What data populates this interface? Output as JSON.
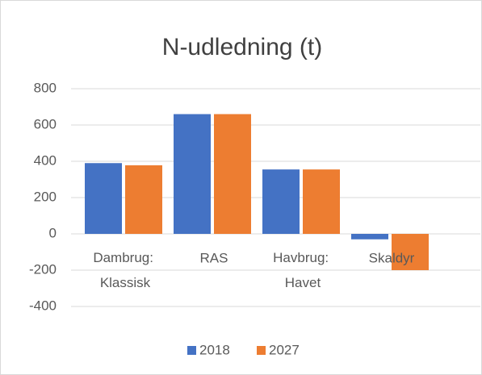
{
  "chart_data": {
    "type": "bar",
    "title": "N-udledning (t)",
    "categories": [
      "Dambrug: Klassisk",
      "RAS",
      "Havbrug: Havet",
      "Skaldyr"
    ],
    "series": [
      {
        "name": "2018",
        "color": "#4472c4",
        "values": [
          390,
          660,
          355,
          -30
        ]
      },
      {
        "name": "2027",
        "color": "#ed7d31",
        "values": [
          378,
          660,
          355,
          -200
        ]
      }
    ],
    "ylim": [
      -400,
      800
    ],
    "yticks": [
      -400,
      -200,
      0,
      200,
      400,
      600,
      800
    ],
    "grid": true,
    "legend": "bottom"
  }
}
